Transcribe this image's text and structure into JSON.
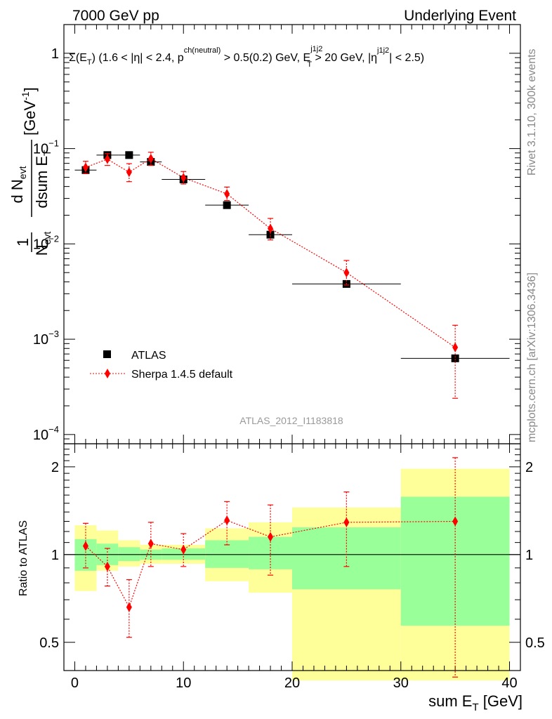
{
  "header": {
    "left": "7000 GeV pp",
    "right": "Underlying Event",
    "observable": "Σ(E",
    "observable_sub": "T",
    "observable_rest": ") (1.6 < |η| < 2.4, p",
    "observable_sup1": "ch(neutral)",
    "observable_rest2": " > 0.5(0.2) GeV, E",
    "observable_sup2": "j1j2",
    "observable_sub2": "T",
    "observable_rest3": " > 20 GeV, |η",
    "observable_sup3": "j1j2",
    "observable_rest4": "| < 2.5)"
  },
  "side_text": {
    "rivet": "Rivet 3.1.10,  300k events",
    "mcplots": "mcplots.cern.ch [arXiv:1306.3436]"
  },
  "analysis_id": "ATLAS_2012_I1183818",
  "legend": {
    "atlas": "ATLAS",
    "sherpa": "Sherpa 1.4.5 default"
  },
  "labels": {
    "main_ylabel_num": "d N",
    "main_ylabel_num_sub": "evt",
    "main_ylabel_den": "dsum E",
    "main_ylabel_den_sub": "T",
    "main_ylabel_pre_num": "1",
    "main_ylabel_pre_den": "N",
    "main_ylabel_pre_den_sub": "evt",
    "main_ylabel_unit": "[GeV",
    "main_ylabel_unit_sup": "-1",
    "main_ylabel_unit_end": "]",
    "ratio_ylabel": "Ratio to ATLAS",
    "xlabel": "sum E",
    "xlabel_sub": "T",
    "xlabel_unit": " [GeV]"
  },
  "colors": {
    "atlas": "#000000",
    "sherpa": "#ff0000",
    "band_inner": "#99ff99",
    "band_outer": "#ffff99",
    "side_text": "#888888",
    "analysis_id": "#999999"
  },
  "chart_data": [
    {
      "type": "scatter",
      "panel": "main",
      "yscale": "log",
      "xlim": [
        -1,
        41
      ],
      "ylim": [
        8e-05,
        2.0
      ],
      "yticks": [
        {
          "value": 1,
          "label": "1"
        },
        {
          "value": 0.1,
          "label": "10",
          "exp": "−1"
        },
        {
          "value": 0.01,
          "label": "10",
          "exp": "−2"
        },
        {
          "value": 0.001,
          "label": "10",
          "exp": "−3"
        },
        {
          "value": 0.0001,
          "label": "10",
          "exp": "−4"
        }
      ],
      "series": [
        {
          "name": "ATLAS",
          "x": [
            1,
            3,
            5,
            7,
            10,
            14,
            18,
            25,
            35
          ],
          "xerr": [
            1,
            1,
            1,
            1,
            2,
            2,
            2,
            5,
            5
          ],
          "y": [
            0.0595,
            0.0855,
            0.0855,
            0.0725,
            0.0475,
            0.0255,
            0.0125,
            0.0038,
            0.00063
          ]
        },
        {
          "name": "Sherpa 1.4.5 default",
          "x": [
            1,
            3,
            5,
            7,
            10,
            14,
            18,
            25,
            35
          ],
          "y": [
            0.0635,
            0.0775,
            0.0565,
            0.0785,
            0.0495,
            0.0335,
            0.0145,
            0.005,
            0.00082
          ],
          "ylow": [
            0.0545,
            0.0665,
            0.045,
            0.0665,
            0.0425,
            0.0285,
            0.011,
            0.0037,
            0.00024
          ],
          "yhigh": [
            0.0735,
            0.0885,
            0.0695,
            0.0915,
            0.0575,
            0.0395,
            0.0185,
            0.0067,
            0.0014
          ]
        }
      ]
    },
    {
      "type": "scatter",
      "panel": "ratio",
      "yscale": "log",
      "xlim": [
        -1,
        41
      ],
      "ylim": [
        0.4,
        2.4
      ],
      "xticks": [
        0,
        10,
        20,
        30,
        40
      ],
      "yticks": [
        {
          "value": 0.5,
          "label": "0.5"
        },
        {
          "value": 1,
          "label": "1"
        },
        {
          "value": 2,
          "label": "2"
        }
      ],
      "bands": {
        "edges": [
          0,
          2,
          4,
          6,
          8,
          12,
          16,
          20,
          30,
          40
        ],
        "inner_low": [
          0.88,
          0.92,
          0.95,
          0.96,
          0.96,
          0.9,
          0.89,
          0.76,
          0.57
        ],
        "inner_high": [
          1.13,
          1.09,
          1.06,
          1.04,
          1.05,
          1.12,
          1.15,
          1.24,
          1.58
        ],
        "outer_low": [
          0.75,
          0.88,
          0.91,
          0.93,
          0.93,
          0.81,
          0.74,
          0.37,
          0.37
        ],
        "outer_high": [
          1.26,
          1.21,
          1.12,
          1.08,
          1.08,
          1.23,
          1.29,
          1.45,
          1.97
        ]
      },
      "series": [
        {
          "name": "Sherpa 1.4.5 default",
          "x": [
            1,
            3,
            5,
            7,
            10,
            14,
            18,
            25,
            35
          ],
          "y": [
            1.07,
            0.91,
            0.66,
            1.09,
            1.04,
            1.31,
            1.15,
            1.29,
            1.3
          ],
          "ylow": [
            0.9,
            0.78,
            0.52,
            0.91,
            0.91,
            1.08,
            0.85,
            0.91,
            0.38
          ],
          "yhigh": [
            1.28,
            1.05,
            0.82,
            1.29,
            1.18,
            1.52,
            1.48,
            1.64,
            2.15
          ]
        }
      ]
    }
  ]
}
